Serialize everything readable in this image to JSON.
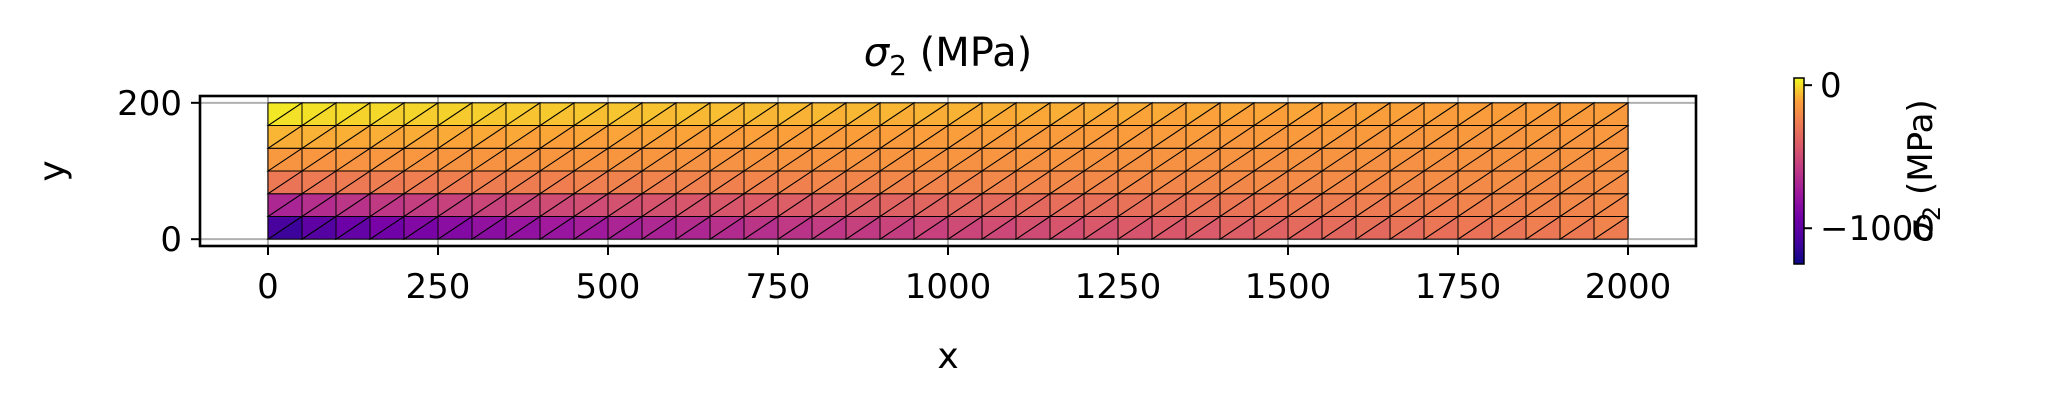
{
  "chart_data": {
    "type": "heatmap",
    "title": {
      "symbol": "σ",
      "sub": "2",
      "units": " (MPa)"
    },
    "xlabel": "x",
    "ylabel": "y",
    "xlim": [
      -100,
      2100
    ],
    "ylim": [
      -10,
      210
    ],
    "xticks": [
      0,
      250,
      500,
      750,
      1000,
      1250,
      1500,
      1750,
      2000
    ],
    "xtick_labels": [
      "0",
      "250",
      "500",
      "750",
      "1000",
      "1250",
      "1500",
      "1750",
      "2000"
    ],
    "yticks": [
      0,
      200
    ],
    "ytick_labels": [
      "0",
      "200"
    ],
    "grid": true,
    "colormap": "plasma",
    "colorbar": {
      "label": {
        "symbol": "σ",
        "sub": "2",
        "units": " (MPa)"
      },
      "range": [
        -1250,
        50
      ],
      "ticks": [
        0,
        -1000
      ],
      "tick_labels": [
        "0",
        "−1000"
      ]
    },
    "mesh": {
      "x_range": [
        0,
        2000
      ],
      "y_range": [
        0,
        200
      ],
      "columns": 40,
      "rows": 6,
      "element": "triangle",
      "row_values_at_x0": [
        -1200,
        -750,
        -300,
        -150,
        -70,
        30
      ],
      "row_values_at_x2000": [
        -230,
        -210,
        -190,
        -170,
        -150,
        -130
      ]
    },
    "gridline_color": "#b0b0b0"
  }
}
